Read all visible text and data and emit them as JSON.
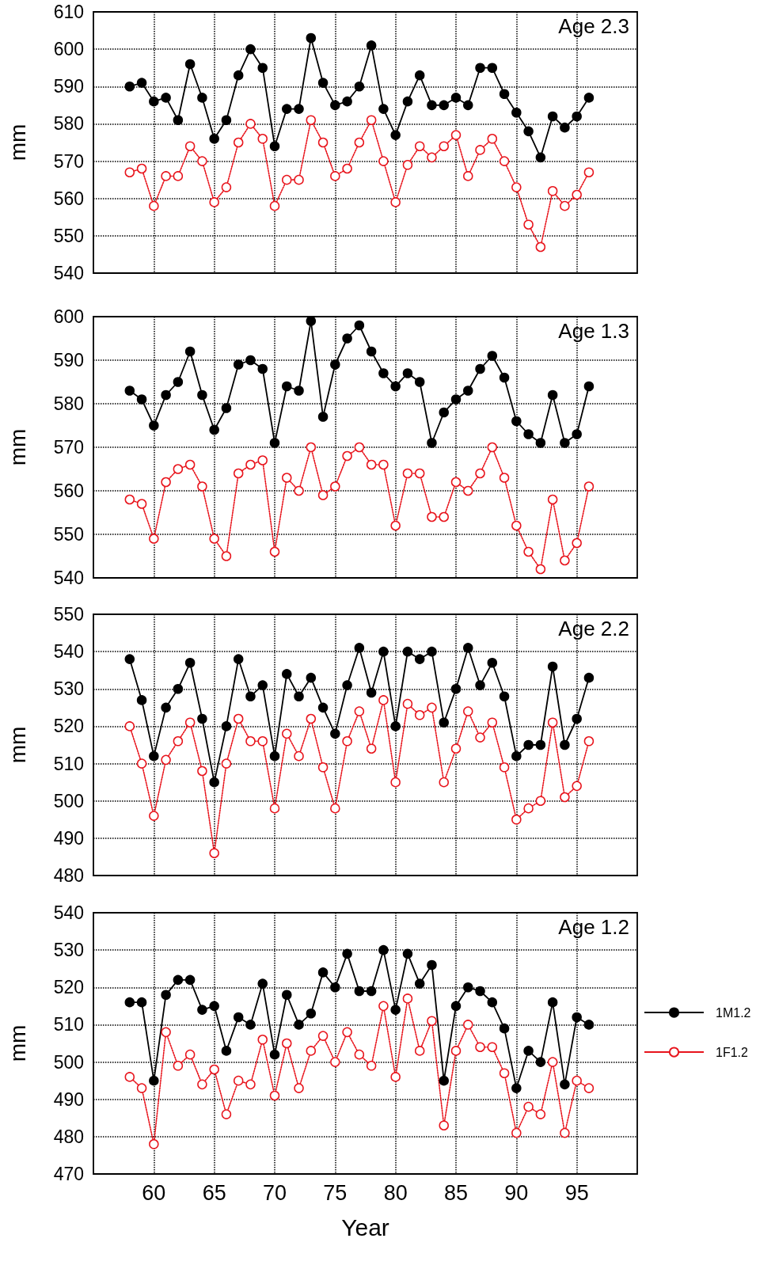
{
  "chart_data": [
    {
      "type": "line",
      "annotations": [
        "Age 2.3"
      ],
      "ylabel": "mm",
      "x": [
        58,
        59,
        60,
        61,
        62,
        63,
        64,
        65,
        66,
        67,
        68,
        69,
        70,
        71,
        72,
        73,
        74,
        75,
        76,
        77,
        78,
        79,
        80,
        81,
        82,
        83,
        84,
        85,
        86,
        87,
        88,
        89,
        90,
        91,
        92,
        93,
        94,
        95,
        96
      ],
      "xlim": [
        55,
        100
      ],
      "xticks": [
        60,
        65,
        70,
        75,
        80,
        85,
        90,
        95
      ],
      "ylim": [
        540,
        610
      ],
      "yticks": [
        540,
        550,
        560,
        570,
        580,
        590,
        600,
        610
      ],
      "grid": true,
      "legend": false,
      "marker": "circle",
      "tick_labels": "y",
      "series": [
        {
          "color": "#000000",
          "line_style": "solid",
          "values": [
            590,
            591,
            586,
            587,
            581,
            596,
            587,
            576,
            581,
            593,
            600,
            595,
            574,
            584,
            584,
            603,
            591,
            585,
            586,
            590,
            601,
            584,
            577,
            586,
            593,
            585,
            585,
            587,
            585,
            595,
            595,
            588,
            583,
            578,
            571,
            582,
            579,
            582,
            587
          ]
        },
        {
          "color": "#e8141c",
          "line_style": "dotted",
          "values": [
            567,
            568,
            558,
            566,
            566,
            574,
            570,
            559,
            563,
            575,
            580,
            576,
            558,
            565,
            565,
            581,
            575,
            566,
            568,
            575,
            581,
            570,
            559,
            569,
            574,
            571,
            574,
            577,
            566,
            573,
            576,
            570,
            563,
            553,
            547,
            562,
            558,
            561,
            567
          ]
        }
      ]
    },
    {
      "type": "line",
      "annotations": [
        "Age 1.3"
      ],
      "ylabel": "mm",
      "x": [
        58,
        59,
        60,
        61,
        62,
        63,
        64,
        65,
        66,
        67,
        68,
        69,
        70,
        71,
        72,
        73,
        74,
        75,
        76,
        77,
        78,
        79,
        80,
        81,
        82,
        83,
        84,
        85,
        86,
        87,
        88,
        89,
        90,
        91,
        92,
        93,
        94,
        95,
        96
      ],
      "xlim": [
        55,
        100
      ],
      "xticks": [
        60,
        65,
        70,
        75,
        80,
        85,
        90,
        95
      ],
      "ylim": [
        540,
        600
      ],
      "yticks": [
        540,
        550,
        560,
        570,
        580,
        590,
        600
      ],
      "grid": true,
      "legend": false,
      "marker": "circle",
      "tick_labels": "y",
      "series": [
        {
          "color": "#000000",
          "line_style": "solid",
          "values": [
            583,
            581,
            575,
            582,
            585,
            592,
            582,
            574,
            579,
            589,
            590,
            588,
            571,
            584,
            583,
            599,
            577,
            589,
            595,
            598,
            592,
            587,
            584,
            587,
            585,
            571,
            578,
            581,
            583,
            588,
            591,
            586,
            576,
            573,
            571,
            582,
            571,
            573,
            584
          ]
        },
        {
          "color": "#e8141c",
          "line_style": "dotted",
          "values": [
            558,
            557,
            549,
            562,
            565,
            566,
            561,
            549,
            545,
            564,
            566,
            567,
            546,
            563,
            560,
            570,
            559,
            561,
            568,
            570,
            566,
            566,
            552,
            564,
            564,
            554,
            554,
            562,
            560,
            564,
            570,
            563,
            552,
            546,
            542,
            558,
            544,
            548,
            561
          ]
        }
      ]
    },
    {
      "type": "line",
      "annotations": [
        "Age 2.2"
      ],
      "ylabel": "mm",
      "x": [
        58,
        59,
        60,
        61,
        62,
        63,
        64,
        65,
        66,
        67,
        68,
        69,
        70,
        71,
        72,
        73,
        74,
        75,
        76,
        77,
        78,
        79,
        80,
        81,
        82,
        83,
        84,
        85,
        86,
        87,
        88,
        89,
        90,
        91,
        92,
        93,
        94,
        95,
        96
      ],
      "xlim": [
        55,
        100
      ],
      "xticks": [
        60,
        65,
        70,
        75,
        80,
        85,
        90,
        95
      ],
      "ylim": [
        480,
        550
      ],
      "yticks": [
        480,
        490,
        500,
        510,
        520,
        530,
        540,
        550
      ],
      "grid": true,
      "legend": false,
      "marker": "circle",
      "tick_labels": "y",
      "series": [
        {
          "color": "#000000",
          "line_style": "solid",
          "values": [
            538,
            527,
            512,
            525,
            530,
            537,
            522,
            505,
            520,
            538,
            528,
            531,
            512,
            534,
            528,
            533,
            525,
            518,
            531,
            541,
            529,
            540,
            520,
            540,
            538,
            540,
            521,
            530,
            541,
            531,
            537,
            528,
            512,
            515,
            515,
            536,
            515,
            522,
            533
          ]
        },
        {
          "color": "#e8141c",
          "line_style": "dotted",
          "values": [
            520,
            510,
            496,
            511,
            516,
            521,
            508,
            486,
            510,
            522,
            516,
            516,
            498,
            518,
            512,
            522,
            509,
            498,
            516,
            524,
            514,
            527,
            505,
            526,
            523,
            525,
            505,
            514,
            524,
            517,
            521,
            509,
            495,
            498,
            500,
            521,
            501,
            504,
            516
          ]
        }
      ]
    },
    {
      "type": "line",
      "annotations": [
        "Age 1.2"
      ],
      "ylabel": "mm",
      "xlabel": "Year",
      "x": [
        58,
        59,
        60,
        61,
        62,
        63,
        64,
        65,
        66,
        67,
        68,
        69,
        70,
        71,
        72,
        73,
        74,
        75,
        76,
        77,
        78,
        79,
        80,
        81,
        82,
        83,
        84,
        85,
        86,
        87,
        88,
        89,
        90,
        91,
        92,
        93,
        94,
        95,
        96
      ],
      "xlim": [
        55,
        100
      ],
      "xticks": [
        60,
        65,
        70,
        75,
        80,
        85,
        90,
        95
      ],
      "ylim": [
        470,
        540
      ],
      "yticks": [
        470,
        480,
        490,
        500,
        510,
        520,
        530,
        540
      ],
      "grid": true,
      "legend": "right",
      "marker": "circle",
      "series": [
        {
          "name": "1M1.2",
          "color": "#000000",
          "line_style": "solid",
          "values": [
            516,
            516,
            495,
            518,
            522,
            522,
            514,
            515,
            503,
            512,
            510,
            521,
            502,
            518,
            510,
            513,
            524,
            520,
            529,
            519,
            519,
            530,
            514,
            529,
            521,
            526,
            495,
            515,
            520,
            519,
            516,
            509,
            493,
            503,
            500,
            516,
            494,
            512,
            510
          ]
        },
        {
          "name": "1F1.2",
          "color": "#e8141c",
          "line_style": "dotted",
          "values": [
            496,
            493,
            478,
            508,
            499,
            502,
            494,
            498,
            486,
            495,
            494,
            506,
            491,
            505,
            493,
            503,
            507,
            500,
            508,
            502,
            499,
            515,
            496,
            517,
            503,
            511,
            483,
            503,
            510,
            504,
            504,
            497,
            481,
            488,
            486,
            500,
            481,
            495,
            493
          ]
        }
      ]
    }
  ]
}
